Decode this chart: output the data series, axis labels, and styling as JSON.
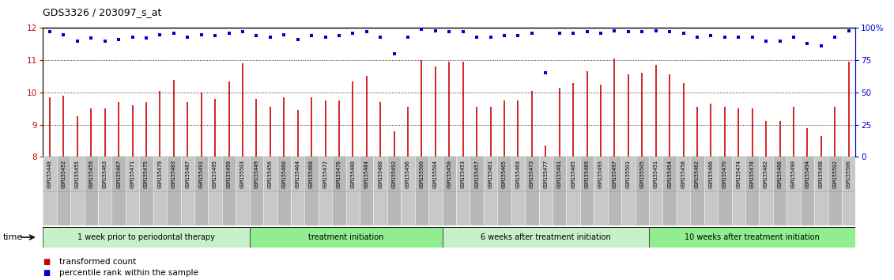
{
  "title": "GDS3326 / 203097_s_at",
  "ylim_left": [
    8,
    12
  ],
  "ylim_right": [
    0,
    100
  ],
  "yticks_left": [
    8,
    9,
    10,
    11,
    12
  ],
  "yticks_right": [
    0,
    25,
    50,
    75,
    100
  ],
  "ytick_right_labels": [
    "0",
    "25",
    "50",
    "75",
    "100%"
  ],
  "bar_color": "#cc0000",
  "dot_color": "#0000cc",
  "plot_bg_color": "#ffffff",
  "xlabels_bg_color": "#d0d0d0",
  "samples": [
    "GSM155448",
    "GSM155452",
    "GSM155455",
    "GSM155459",
    "GSM155463",
    "GSM155467",
    "GSM155471",
    "GSM155475",
    "GSM155479",
    "GSM155483",
    "GSM155487",
    "GSM155491",
    "GSM155495",
    "GSM155499",
    "GSM155503",
    "GSM155449",
    "GSM155456",
    "GSM155460",
    "GSM155464",
    "GSM155468",
    "GSM155472",
    "GSM155476",
    "GSM155480",
    "GSM155484",
    "GSM155488",
    "GSM155492",
    "GSM155496",
    "GSM155500",
    "GSM155504",
    "GSM155450",
    "GSM155453",
    "GSM155457",
    "GSM155461",
    "GSM155465",
    "GSM155469",
    "GSM155473",
    "GSM155477",
    "GSM155481",
    "GSM155485",
    "GSM155489",
    "GSM155493",
    "GSM155497",
    "GSM155501",
    "GSM155505",
    "GSM155451",
    "GSM155454",
    "GSM155458",
    "GSM155462",
    "GSM155466",
    "GSM155470",
    "GSM155474",
    "GSM155478",
    "GSM155482",
    "GSM155486",
    "GSM155490",
    "GSM155494",
    "GSM155498",
    "GSM155502",
    "GSM155506"
  ],
  "bar_heights": [
    9.85,
    9.9,
    9.25,
    9.5,
    9.5,
    9.7,
    9.6,
    9.7,
    10.05,
    10.4,
    9.7,
    10.0,
    9.8,
    10.35,
    10.9,
    9.8,
    9.55,
    9.85,
    9.45,
    9.85,
    9.75,
    9.75,
    10.35,
    10.5,
    9.7,
    8.8,
    9.55,
    11.0,
    10.8,
    10.95,
    10.95,
    9.55,
    9.55,
    9.75,
    9.75,
    10.05,
    8.35,
    10.15,
    10.3,
    10.65,
    10.25,
    11.05,
    10.55,
    10.6,
    10.85,
    10.55,
    10.3,
    9.55,
    9.65,
    9.55,
    9.5,
    9.5,
    9.1,
    9.1,
    9.55,
    8.9,
    8.65,
    9.55,
    10.95
  ],
  "percentile_values": [
    97,
    95,
    90,
    92,
    90,
    91,
    93,
    92,
    95,
    96,
    93,
    95,
    94,
    96,
    97,
    94,
    93,
    95,
    91,
    94,
    93,
    94,
    96,
    97,
    93,
    80,
    93,
    99,
    98,
    97,
    97,
    93,
    93,
    94,
    94,
    96,
    65,
    96,
    96,
    97,
    96,
    98,
    97,
    97,
    98,
    97,
    96,
    93,
    94,
    93,
    93,
    93,
    90,
    90,
    93,
    88,
    86,
    93,
    98
  ],
  "groups": [
    {
      "label": "1 week prior to periodontal therapy",
      "start": 0,
      "end": 15
    },
    {
      "label": "treatment initiation",
      "start": 15,
      "end": 29
    },
    {
      "label": "6 weeks after treatment initiation",
      "start": 29,
      "end": 44
    },
    {
      "label": "10 weeks after treatment initiation",
      "start": 44,
      "end": 59
    }
  ],
  "group_dividers": [
    15,
    29,
    44
  ],
  "group_colors_alt": [
    "#c8f0c8",
    "#90ee90"
  ],
  "legend_bar_label": "transformed count",
  "legend_dot_label": "percentile rank within the sample",
  "time_label": "time"
}
